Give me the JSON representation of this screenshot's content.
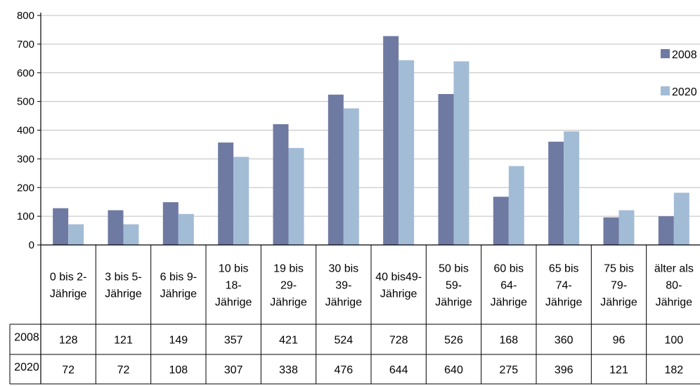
{
  "chart_data": {
    "type": "bar",
    "title": "",
    "xlabel": "",
    "ylabel": "",
    "ylim": [
      0,
      800
    ],
    "yticks": [
      0,
      100,
      200,
      300,
      400,
      500,
      600,
      700,
      800
    ],
    "grid": true,
    "legend_position": "right",
    "categories": [
      [
        "0 bis 2-",
        "Jährige"
      ],
      [
        "3 bis 5-",
        "Jährige"
      ],
      [
        "6 bis 9-",
        "Jährige"
      ],
      [
        "10 bis",
        "18-",
        "Jährige"
      ],
      [
        "19 bis",
        "29-",
        "Jährige"
      ],
      [
        "30 bis",
        "39-",
        "Jährige"
      ],
      [
        "40 bis49-",
        "Jährige"
      ],
      [
        "50 bis",
        "59-",
        "Jährige"
      ],
      [
        "60 bis",
        "64-",
        "Jährige"
      ],
      [
        "65 bis",
        "74-",
        "Jährige"
      ],
      [
        "75 bis",
        "79-",
        "Jährige"
      ],
      [
        "älter als",
        "80-",
        "Jährige"
      ]
    ],
    "series": [
      {
        "name": "2008",
        "color": "#6f7aa3",
        "values": [
          128,
          121,
          149,
          357,
          421,
          524,
          728,
          526,
          168,
          360,
          96,
          100
        ]
      },
      {
        "name": "2020",
        "color": "#a3bcd6",
        "values": [
          72,
          72,
          108,
          307,
          338,
          476,
          644,
          640,
          275,
          396,
          121,
          182
        ]
      }
    ]
  }
}
